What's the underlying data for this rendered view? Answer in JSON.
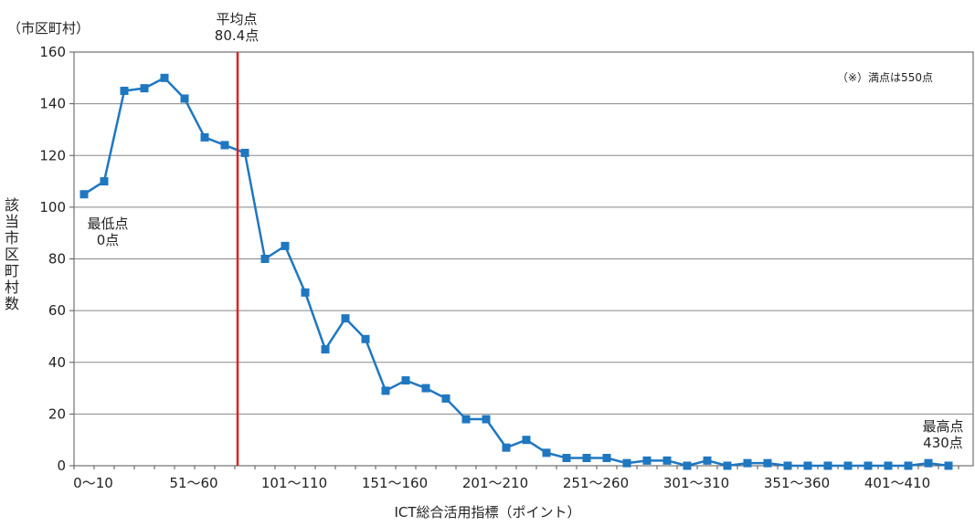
{
  "chart_data": {
    "type": "line",
    "xlabel": "ICT総合活用指標（ポイント）",
    "ylabel": "該当市区町村数",
    "y_unit": "（市区町村）",
    "ylim": [
      0,
      160
    ],
    "yticks": [
      0,
      20,
      40,
      60,
      80,
      100,
      120,
      140,
      160
    ],
    "xtick_labels": [
      "0〜10",
      "51〜60",
      "101〜110",
      "151〜160",
      "201〜210",
      "251〜260",
      "301〜310",
      "351〜360",
      "401〜410"
    ],
    "grid": true,
    "categories": [
      "0〜10",
      "11〜20",
      "21〜30",
      "31〜40",
      "41〜50",
      "51〜60",
      "61〜70",
      "71〜80",
      "81〜90",
      "91〜100",
      "101〜110",
      "111〜120",
      "121〜130",
      "131〜140",
      "141〜150",
      "151〜160",
      "161〜170",
      "171〜180",
      "181〜190",
      "191〜200",
      "201〜210",
      "211〜220",
      "221〜230",
      "231〜240",
      "241〜250",
      "251〜260",
      "261〜270",
      "271〜280",
      "281〜290",
      "291〜300",
      "301〜310",
      "311〜320",
      "321〜330",
      "331〜340",
      "341〜350",
      "351〜360",
      "361〜370",
      "371〜380",
      "381〜390",
      "391〜400",
      "401〜410",
      "411〜420",
      "421〜430",
      "431〜440"
    ],
    "values": [
      105,
      110,
      145,
      146,
      150,
      142,
      127,
      124,
      121,
      80,
      85,
      67,
      45,
      57,
      49,
      29,
      33,
      30,
      26,
      18,
      18,
      7,
      10,
      5,
      3,
      3,
      3,
      1,
      2,
      2,
      0,
      2,
      0,
      1,
      1,
      0,
      0,
      0,
      0,
      0,
      0,
      0,
      1,
      0
    ],
    "series_color": "#1f77c0",
    "average": {
      "value": 80.4,
      "label_line1": "平均点",
      "label_line2": "80.4点",
      "color": "#e02020"
    },
    "annotations": {
      "min_line1": "最低点",
      "min_line2": "0点",
      "max_line1": "最高点",
      "max_line2": "430点",
      "note": "（※）満点は550点"
    }
  }
}
